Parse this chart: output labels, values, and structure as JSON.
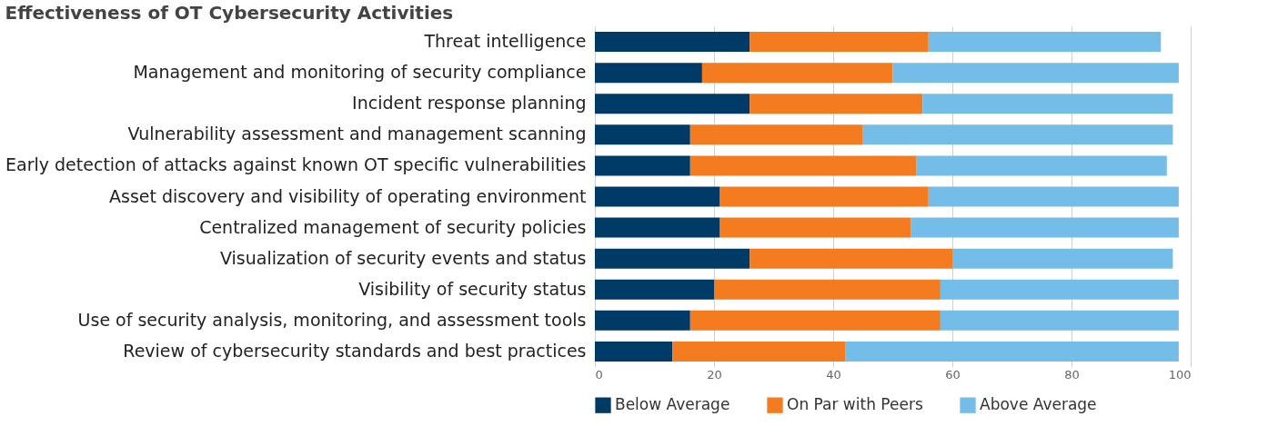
{
  "chart_data": {
    "type": "bar",
    "orientation": "horizontal",
    "stacked": true,
    "title": "Effectiveness of OT Cybersecurity Activities",
    "categories": [
      "Threat intelligence",
      "Management and monitoring of security compliance",
      "Incident response planning",
      "Vulnerability assessment and management scanning",
      "Early detection of attacks against known OT specific vulnerabilities",
      "Asset discovery and visibility of operating environment",
      "Centralized management of security policies",
      "Visualization of security events and status",
      "Visibility of security status",
      "Use of security analysis, monitoring, and assessment tools",
      "Review of cybersecurity standards and best practices"
    ],
    "series": [
      {
        "name": "Below Average",
        "color": "#003a66",
        "values": [
          26,
          18,
          26,
          16,
          16,
          21,
          21,
          26,
          20,
          16,
          13
        ]
      },
      {
        "name": "On Par with Peers",
        "color": "#f47b20",
        "values": [
          30,
          32,
          29,
          29,
          38,
          35,
          32,
          34,
          38,
          42,
          29
        ]
      },
      {
        "name": "Above Average",
        "color": "#74bde8",
        "values": [
          39,
          48,
          42,
          52,
          42,
          42,
          45,
          37,
          40,
          40,
          56
        ]
      }
    ],
    "xlim": [
      0,
      100
    ],
    "xticks": [
      0,
      20,
      40,
      60,
      80,
      100
    ],
    "grid": "x",
    "legend": "bottom"
  }
}
